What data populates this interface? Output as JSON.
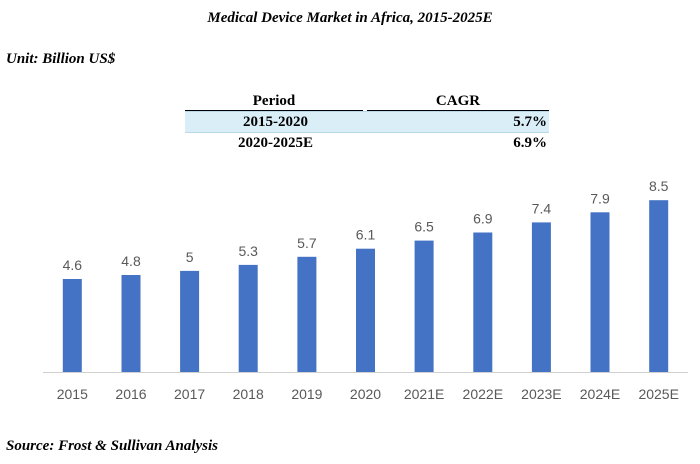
{
  "title": "Medical Device Market in Africa, 2015-2025E",
  "unit": "Unit: Billion US$",
  "cagr_table": {
    "headers": [
      "Period",
      "CAGR"
    ],
    "rows": [
      {
        "period": "2015-2020",
        "cagr": "5.7%"
      },
      {
        "period": "2020-2025E",
        "cagr": "6.9%"
      }
    ]
  },
  "source": "Source: Frost & Sullivan Analysis",
  "chart_data": {
    "type": "bar",
    "title": "",
    "categories": [
      "2015",
      "2016",
      "2017",
      "2018",
      "2019",
      "2020",
      "2021E",
      "2022E",
      "2023E",
      "2024E",
      "2025E"
    ],
    "values": [
      4.6,
      4.8,
      5,
      5.3,
      5.7,
      6.1,
      6.5,
      6.9,
      7.4,
      7.9,
      8.5
    ],
    "xlabel": "",
    "ylabel": "",
    "ylim": [
      0,
      9.5
    ],
    "bar_color": "#4472c4",
    "grid": false
  }
}
